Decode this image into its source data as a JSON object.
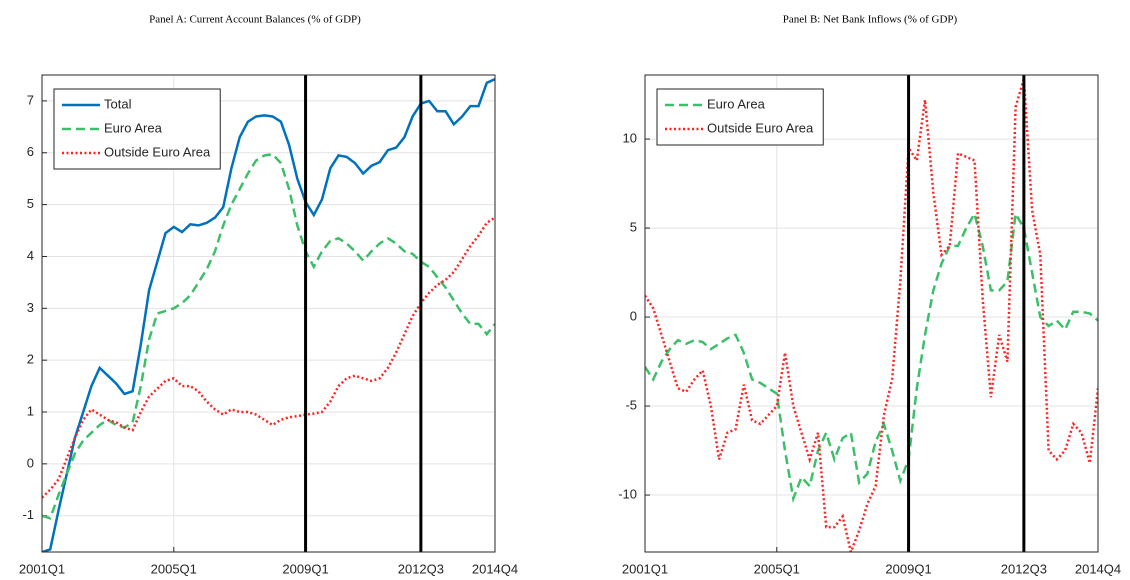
{
  "chart_data": [
    {
      "type": "line",
      "title": "Panel A: Current Account Balances (% of GDP)",
      "categories": [
        "2001Q1",
        null,
        null,
        null,
        null,
        null,
        null,
        null,
        null,
        null,
        null,
        null,
        null,
        null,
        null,
        null,
        "2005Q1",
        null,
        null,
        null,
        null,
        null,
        null,
        null,
        null,
        null,
        null,
        null,
        null,
        null,
        null,
        null,
        "2009Q1",
        null,
        null,
        null,
        null,
        null,
        null,
        null,
        null,
        null,
        null,
        null,
        null,
        null,
        "2012Q3",
        null,
        null,
        null,
        null,
        null,
        null,
        null,
        null,
        "2014Q4"
      ],
      "series": [
        {
          "name": "Total",
          "color": "#0072bd",
          "dash": "solid",
          "values": [
            -1.7,
            -1.65,
            -0.9,
            -0.2,
            0.5,
            1.0,
            1.5,
            1.85,
            1.7,
            1.55,
            1.35,
            1.4,
            2.3,
            3.35,
            3.9,
            4.45,
            4.57,
            4.47,
            4.62,
            4.6,
            4.65,
            4.75,
            4.95,
            5.7,
            6.3,
            6.6,
            6.7,
            6.72,
            6.7,
            6.6,
            6.15,
            5.5,
            5.05,
            4.8,
            5.1,
            5.7,
            5.95,
            5.92,
            5.8,
            5.6,
            5.75,
            5.82,
            6.05,
            6.1,
            6.3,
            6.7,
            6.95,
            7.0,
            6.8,
            6.8,
            6.55,
            6.7,
            6.9,
            6.9,
            7.35,
            7.42
          ]
        },
        {
          "name": "Euro Area",
          "color": "#3dbf6a",
          "dash": "dashed",
          "values": [
            -1.0,
            -1.05,
            -0.6,
            -0.2,
            0.2,
            0.45,
            0.6,
            0.75,
            0.85,
            0.75,
            0.7,
            0.8,
            1.5,
            2.4,
            2.9,
            2.95,
            3.0,
            3.1,
            3.25,
            3.5,
            3.75,
            4.1,
            4.6,
            5.0,
            5.3,
            5.6,
            5.85,
            5.95,
            5.97,
            5.8,
            5.3,
            4.6,
            4.1,
            3.8,
            4.1,
            4.3,
            4.35,
            4.25,
            4.1,
            3.92,
            4.1,
            4.25,
            4.35,
            4.25,
            4.1,
            4.05,
            3.9,
            3.8,
            3.6,
            3.4,
            3.15,
            2.9,
            2.7,
            2.7,
            2.5,
            2.7
          ]
        },
        {
          "name": "Outside Euro Area",
          "color": "#ff2222",
          "dash": "dotted",
          "values": [
            -0.65,
            -0.5,
            -0.3,
            0.1,
            0.5,
            0.85,
            1.05,
            0.95,
            0.85,
            0.8,
            0.7,
            0.65,
            1.0,
            1.3,
            1.45,
            1.6,
            1.65,
            1.5,
            1.5,
            1.4,
            1.2,
            1.05,
            0.95,
            1.05,
            1.0,
            1.0,
            0.95,
            0.85,
            0.75,
            0.85,
            0.9,
            0.92,
            0.95,
            0.97,
            1.0,
            1.2,
            1.5,
            1.65,
            1.7,
            1.65,
            1.6,
            1.65,
            1.85,
            2.15,
            2.5,
            2.85,
            3.1,
            3.3,
            3.45,
            3.55,
            3.7,
            3.95,
            4.2,
            4.4,
            4.65,
            4.75
          ]
        }
      ],
      "ylim": [
        -1.7,
        7.5
      ],
      "yticks": [
        -1,
        0,
        1,
        2,
        3,
        4,
        5,
        6,
        7
      ],
      "grid": true,
      "legend": "top-left",
      "vertical_lines": [
        "2009Q1",
        "2012Q3"
      ]
    },
    {
      "type": "line",
      "title": "Panel B: Net Bank Inflows (% of GDP)",
      "categories": [
        "2001Q1",
        null,
        null,
        null,
        null,
        null,
        null,
        null,
        null,
        null,
        null,
        null,
        null,
        null,
        null,
        null,
        "2005Q1",
        null,
        null,
        null,
        null,
        null,
        null,
        null,
        null,
        null,
        null,
        null,
        null,
        null,
        null,
        null,
        "2009Q1",
        null,
        null,
        null,
        null,
        null,
        null,
        null,
        null,
        null,
        null,
        null,
        null,
        null,
        "2012Q3",
        null,
        null,
        null,
        null,
        null,
        null,
        null,
        null,
        "2014Q4"
      ],
      "series": [
        {
          "name": "Euro Area",
          "color": "#3dbf6a",
          "dash": "dashed",
          "values": [
            -2.8,
            -3.5,
            -2.5,
            -1.8,
            -1.3,
            -1.5,
            -1.3,
            -1.4,
            -1.8,
            -1.5,
            -1.2,
            -1.0,
            -2.0,
            -3.5,
            -3.7,
            -4.0,
            -4.3,
            -7.5,
            -10.2,
            -9.0,
            -9.5,
            -7.5,
            -6.5,
            -8.0,
            -6.8,
            -6.5,
            -9.3,
            -8.8,
            -7.0,
            -6.0,
            -7.5,
            -9.2,
            -8.0,
            -4.0,
            -1.0,
            1.5,
            3.0,
            4.0,
            4.0,
            5.0,
            5.8,
            4.0,
            1.5,
            1.5,
            2.0,
            5.8,
            5.0,
            2.5,
            0.0,
            -0.5,
            -0.2,
            -0.7,
            0.3,
            0.3,
            0.2,
            -0.2
          ]
        },
        {
          "name": "Outside Euro Area",
          "color": "#ff2222",
          "dash": "dotted",
          "values": [
            1.2,
            0.5,
            -1.0,
            -2.5,
            -4.0,
            -4.2,
            -3.5,
            -3.0,
            -5.0,
            -8.0,
            -6.5,
            -6.3,
            -3.8,
            -5.8,
            -6.0,
            -5.5,
            -5.0,
            -2.0,
            -5.0,
            -6.5,
            -8.0,
            -6.5,
            -11.8,
            -11.8,
            -11.2,
            -13.2,
            -12.0,
            -10.5,
            -9.5,
            -5.5,
            -3.5,
            2.0,
            9.5,
            8.8,
            12.2,
            7.0,
            3.5,
            4.0,
            9.2,
            9.0,
            8.8,
            1.0,
            -4.5,
            -1.0,
            -2.5,
            11.8,
            13.4,
            6.0,
            3.5,
            -7.5,
            -8.0,
            -7.5,
            -6.0,
            -6.5,
            -8.2,
            -4.0
          ]
        }
      ],
      "ylim": [
        -13.2,
        13.6
      ],
      "yticks": [
        -10,
        -5,
        0,
        5,
        10
      ],
      "grid": true,
      "legend": "top-left",
      "vertical_lines": [
        "2009Q1",
        "2012Q3"
      ]
    }
  ]
}
